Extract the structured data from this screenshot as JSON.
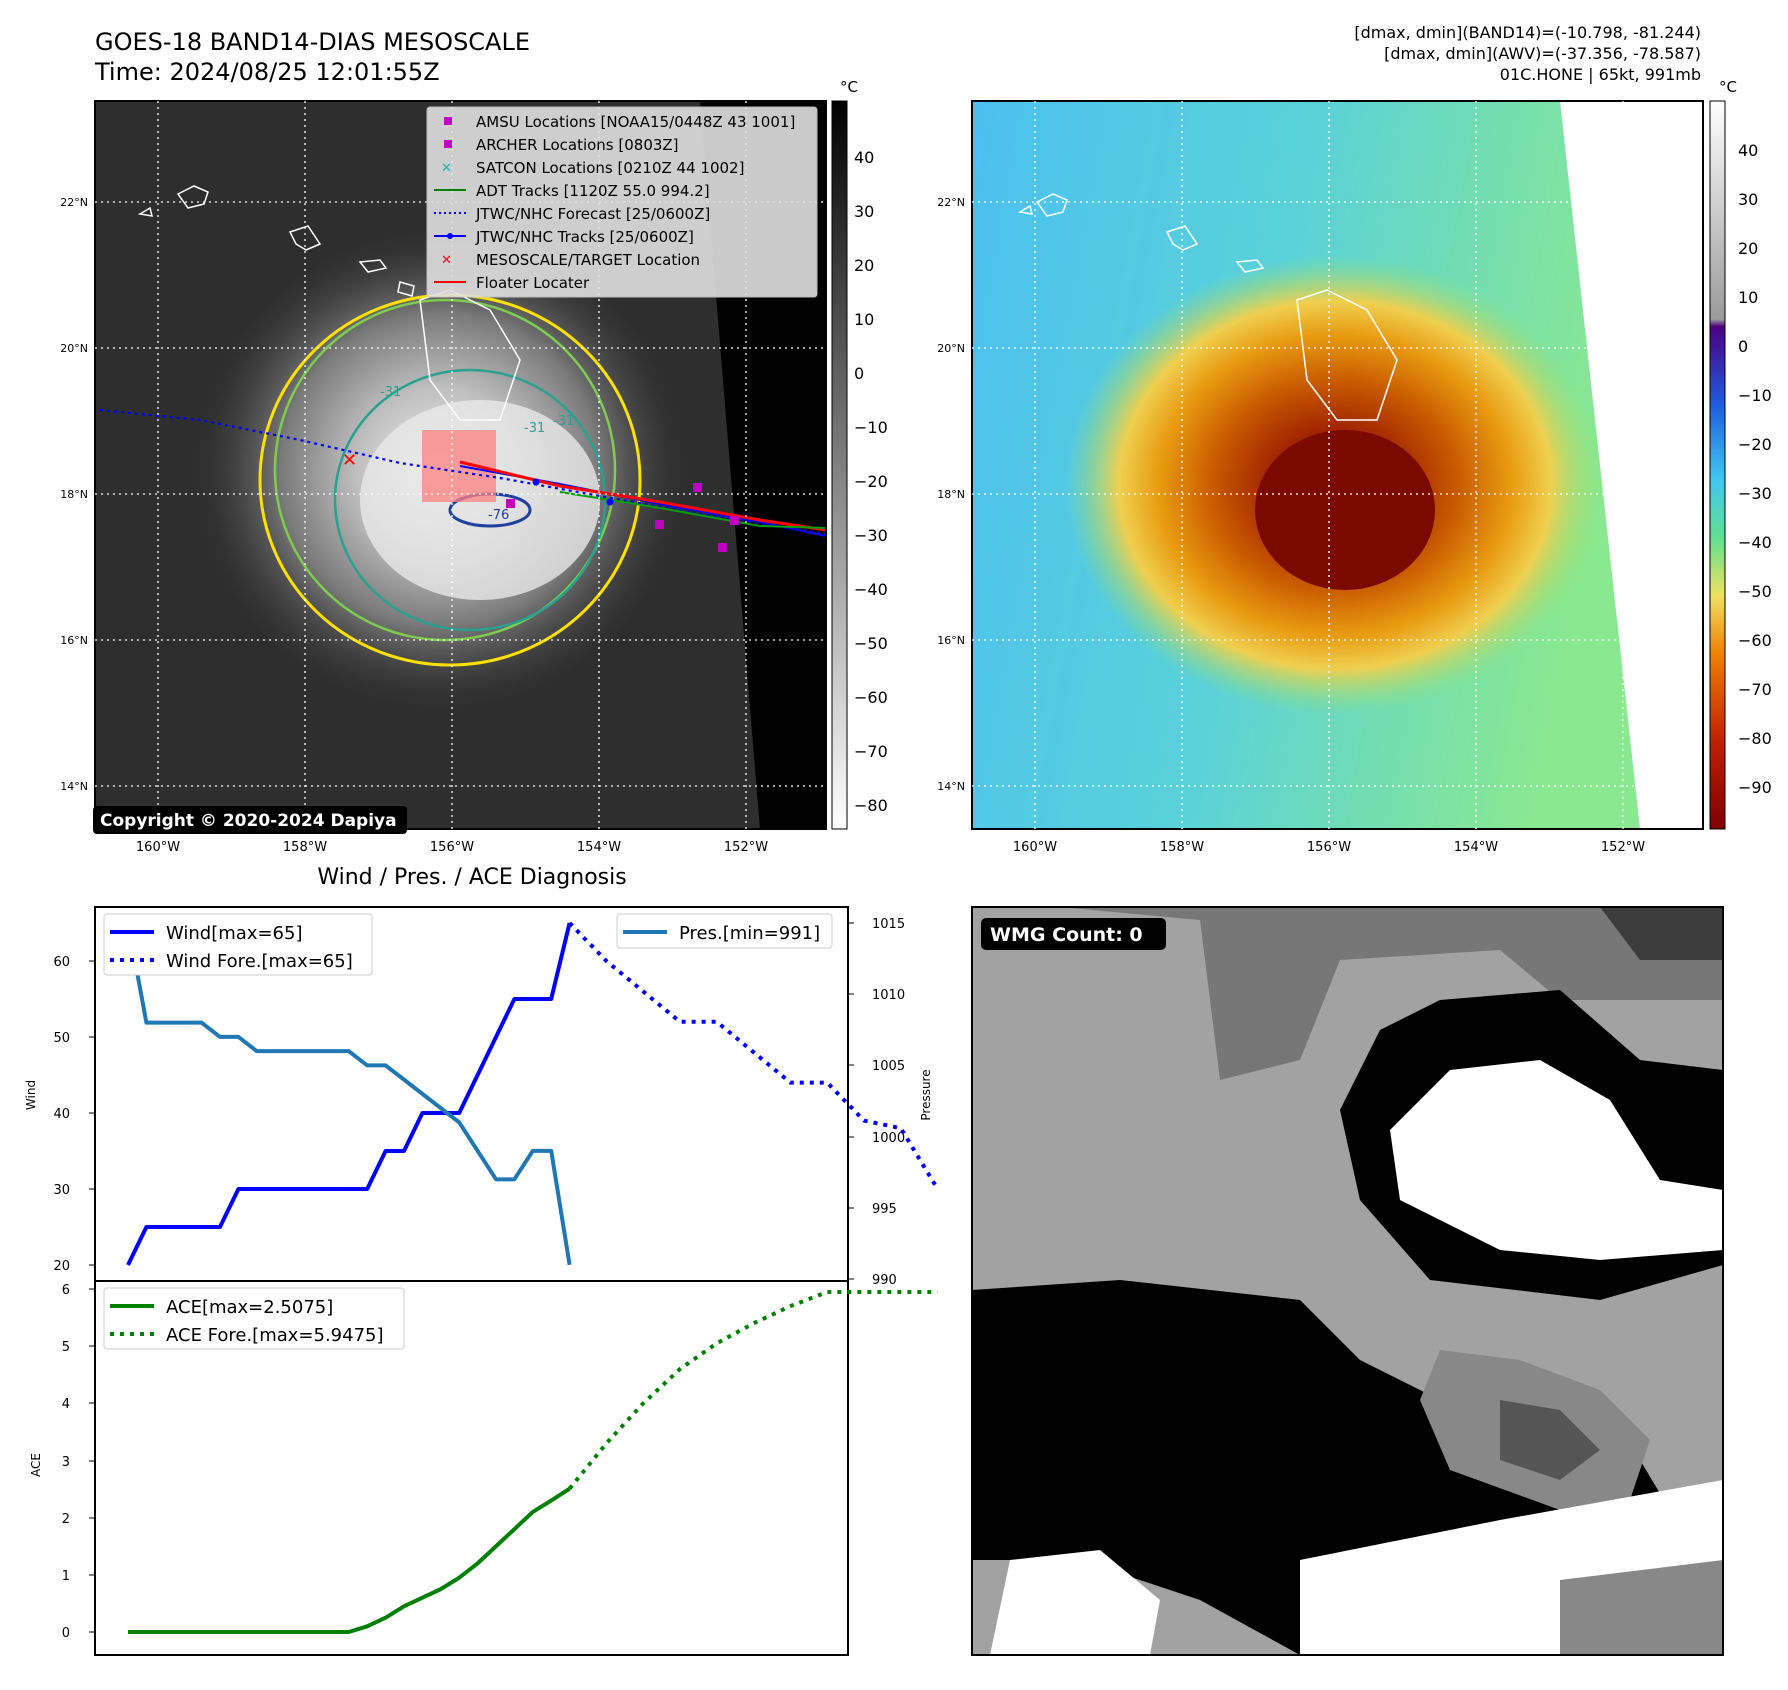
{
  "header": {
    "title": "GOES-18 BAND14-DIAS MESOSCALE",
    "time": "Time: 2024/08/25 12:01:55Z",
    "info_line1": "[dmax, dmin](BAND14)=(-10.798, -81.244)",
    "info_line2": "[dmax, dmin](AWV)=(-37.356, -78.587)",
    "info_line3": "01C.HONE | 65kt, 991mb"
  },
  "maps": {
    "unit": "°C",
    "lon_ticks": [
      "160°W",
      "158°W",
      "156°W",
      "154°W",
      "152°W"
    ],
    "lat_ticks": [
      "22°N",
      "20°N",
      "18°N",
      "16°N",
      "14°N"
    ],
    "copyright": "Copyright © 2020-2024 Dapiya",
    "left_colorbar_ticks": [
      "40",
      "30",
      "20",
      "10",
      "0",
      "−10",
      "−20",
      "−30",
      "−40",
      "−50",
      "−60",
      "−70",
      "−80"
    ],
    "right_colorbar_ticks": [
      "40",
      "30",
      "20",
      "10",
      "0",
      "−10",
      "−20",
      "−30",
      "−40",
      "−50",
      "−60",
      "−70",
      "−80",
      "−90"
    ],
    "contour_labels": [
      "-31",
      "-31",
      "-31",
      "-76"
    ],
    "legend": [
      {
        "label": "AMSU Locations [NOAA15/0448Z 43 1001]",
        "marker": "square",
        "color": "#c000c0"
      },
      {
        "label": "ARCHER Locations [0803Z]",
        "marker": "square",
        "color": "#c000c0"
      },
      {
        "label": "SATCON Locations [0210Z 44 1002]",
        "marker": "x",
        "color": "#20b0b0"
      },
      {
        "label": "ADT Tracks [1120Z 55.0 994.2]",
        "marker": "line",
        "color": "#008000"
      },
      {
        "label": "JTWC/NHC Forecast [25/0600Z]",
        "marker": "dotted",
        "color": "#0000ff"
      },
      {
        "label": "JTWC/NHC Tracks [25/0600Z]",
        "marker": "line-dot",
        "color": "#0000ff"
      },
      {
        "label": "MESOSCALE/TARGET Location",
        "marker": "x",
        "color": "#ff0000"
      },
      {
        "label": "Floater Locater",
        "marker": "line",
        "color": "#ff0000"
      }
    ]
  },
  "diagnosis": {
    "title": "Wind / Pres. / ACE Diagnosis",
    "wind_ylabel": "Wind",
    "pressure_ylabel": "Pressure",
    "ace_ylabel": "ACE",
    "wind_yticks": [
      "60",
      "50",
      "40",
      "30",
      "20"
    ],
    "pressure_yticks": [
      "1015",
      "1010",
      "1005",
      "1000",
      "995",
      "990"
    ],
    "ace_yticks": [
      "6",
      "5",
      "4",
      "3",
      "2",
      "1",
      "0"
    ],
    "legend_wind": "Wind[max=65]",
    "legend_wind_fore": "Wind Fore.[max=65]",
    "legend_pres": "Pres.[min=991]",
    "legend_ace": "ACE[max=2.5075]",
    "legend_ace_fore": "ACE Fore.[max=5.9475]"
  },
  "wmg": {
    "label": "WMG Count: 0"
  },
  "chart_data": [
    {
      "type": "line",
      "title": "Wind / Pres. / ACE Diagnosis",
      "ylabel": "Wind",
      "ylim": [
        18,
        67
      ],
      "x": [
        0,
        1,
        2,
        3,
        4,
        5,
        6,
        7,
        8,
        9,
        10,
        11,
        12,
        13,
        14,
        15,
        16,
        17,
        18,
        19,
        20,
        21,
        22,
        23,
        24,
        25,
        26,
        27,
        28,
        29,
        30,
        31,
        32,
        33,
        34,
        35,
        36,
        37,
        38,
        39,
        40,
        41,
        42,
        43,
        44,
        45,
        46,
        47,
        48,
        49,
        50
      ],
      "series": [
        {
          "name": "Wind[max=65]",
          "style": "solid",
          "color": "#0000ff",
          "x": [
            0,
            1,
            2,
            3,
            4,
            5,
            6,
            7,
            8,
            9,
            10,
            11,
            12,
            13,
            14,
            15,
            16,
            17,
            18,
            19,
            20,
            21,
            22,
            23,
            24
          ],
          "values": [
            20,
            25,
            25,
            25,
            25,
            25,
            30,
            30,
            30,
            30,
            30,
            30,
            30,
            30,
            35,
            35,
            40,
            40,
            40,
            45,
            50,
            55,
            55,
            55,
            65
          ]
        },
        {
          "name": "Wind Fore.[max=65]",
          "style": "dotted",
          "color": "#0000ff",
          "x": [
            24,
            26,
            28,
            30,
            32,
            34,
            36,
            38,
            40,
            42,
            44
          ],
          "values": [
            65,
            60,
            56,
            52,
            52,
            48,
            44,
            44,
            39,
            38,
            30
          ]
        }
      ]
    },
    {
      "type": "line",
      "ylabel": "Pressure",
      "ylim": [
        989.8,
        1015.8
      ],
      "series": [
        {
          "name": "Pres.[min=991]",
          "style": "solid",
          "color": "#1f77b4",
          "x": [
            0,
            1,
            2,
            3,
            4,
            5,
            6,
            7,
            8,
            9,
            10,
            11,
            12,
            13,
            14,
            15,
            16,
            17,
            18,
            19,
            20,
            21,
            22,
            23,
            24
          ],
          "values": [
            1015,
            1008,
            1008,
            1008,
            1008,
            1007,
            1007,
            1006,
            1006,
            1006,
            1006,
            1006,
            1006,
            1005,
            1005,
            1004,
            1003,
            1002,
            1001,
            999,
            997,
            997,
            999,
            999,
            991
          ]
        }
      ]
    },
    {
      "type": "line",
      "ylabel": "ACE",
      "ylim": [
        -0.3,
        6.3
      ],
      "series": [
        {
          "name": "ACE[max=2.5075]",
          "style": "solid",
          "color": "#008000",
          "x": [
            0,
            1,
            2,
            3,
            4,
            5,
            6,
            7,
            8,
            9,
            10,
            11,
            12,
            13,
            14,
            15,
            16,
            17,
            18,
            19,
            20,
            21,
            22,
            23,
            24
          ],
          "values": [
            0,
            0,
            0,
            0,
            0,
            0,
            0,
            0,
            0,
            0,
            0,
            0,
            0,
            0.1,
            0.25,
            0.45,
            0.6,
            0.75,
            0.95,
            1.2,
            1.5,
            1.8,
            2.1,
            2.3,
            2.5075
          ]
        },
        {
          "name": "ACE Fore.[max=5.9475]",
          "style": "dotted",
          "color": "#008000",
          "x": [
            24,
            26,
            28,
            30,
            32,
            34,
            36,
            38,
            40,
            42,
            44
          ],
          "values": [
            2.5075,
            3.3,
            4.0,
            4.6,
            5.05,
            5.4,
            5.7,
            5.9475,
            5.9475,
            5.9475,
            5.9475
          ]
        }
      ]
    }
  ]
}
